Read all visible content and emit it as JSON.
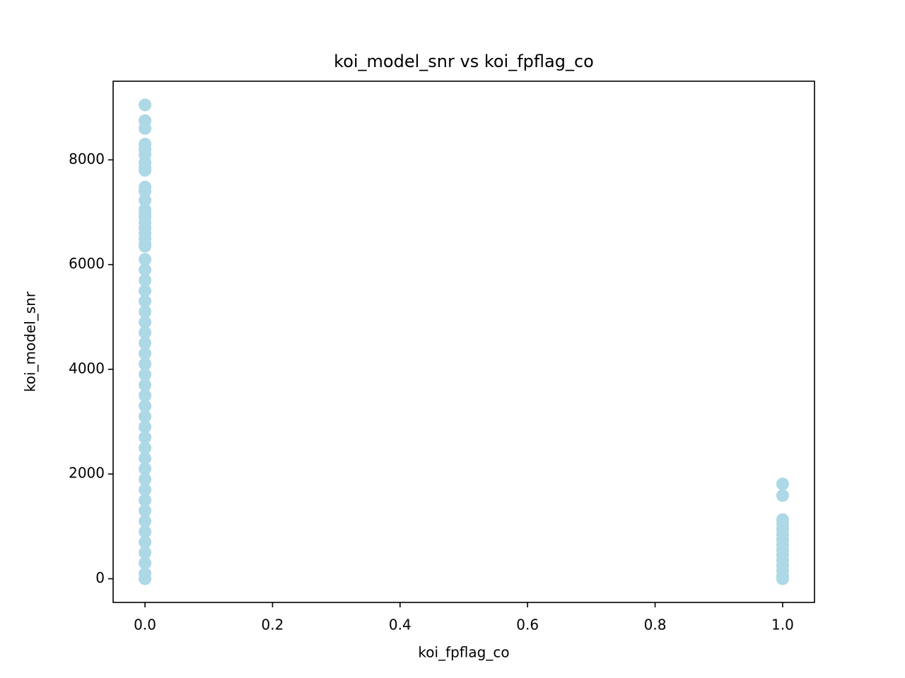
{
  "chart_data": {
    "type": "scatter",
    "title": "koi_model_snr vs koi_fpflag_co",
    "xlabel": "koi_fpflag_co",
    "ylabel": "koi_model_snr",
    "color": "#add8e6",
    "x": [
      0,
      0,
      0,
      0,
      0,
      0,
      0,
      0,
      0,
      0,
      0,
      0,
      0,
      0,
      0,
      0,
      0,
      0,
      0,
      0,
      0,
      0,
      0,
      0,
      0,
      0,
      0,
      0,
      0,
      0,
      0,
      0,
      0,
      0,
      0,
      0,
      0,
      0,
      0,
      0,
      0,
      0,
      0,
      0,
      0,
      0,
      0,
      0,
      0,
      0,
      0,
      0,
      0,
      1,
      1,
      1,
      1,
      1,
      1,
      1,
      1,
      1,
      1,
      1,
      1,
      1,
      1,
      1
    ],
    "values": [
      9050,
      8750,
      8600,
      8300,
      8200,
      8100,
      7950,
      7850,
      7800,
      7480,
      7400,
      7230,
      7050,
      6980,
      6900,
      6800,
      6700,
      6600,
      6500,
      6400,
      6350,
      6100,
      5900,
      5700,
      5500,
      5300,
      5100,
      4900,
      4700,
      4500,
      4300,
      4100,
      3900,
      3700,
      3500,
      3300,
      3100,
      2900,
      2700,
      2500,
      2300,
      2100,
      1900,
      1700,
      1500,
      1300,
      1100,
      900,
      700,
      500,
      300,
      100,
      0,
      1810,
      1590,
      1130,
      1050,
      950,
      850,
      750,
      650,
      550,
      450,
      350,
      250,
      150,
      50,
      0
    ],
    "xlim": [
      -0.05,
      1.05
    ],
    "xticks": [
      {
        "value": 0,
        "label": "0.0"
      },
      0.2,
      0.4,
      0.6,
      0.8,
      {
        "value": 1,
        "label": "1.0"
      }
    ],
    "ylim": [
      -452,
      9502
    ],
    "yticks": [
      0,
      2000,
      4000,
      6000,
      8000
    ]
  }
}
